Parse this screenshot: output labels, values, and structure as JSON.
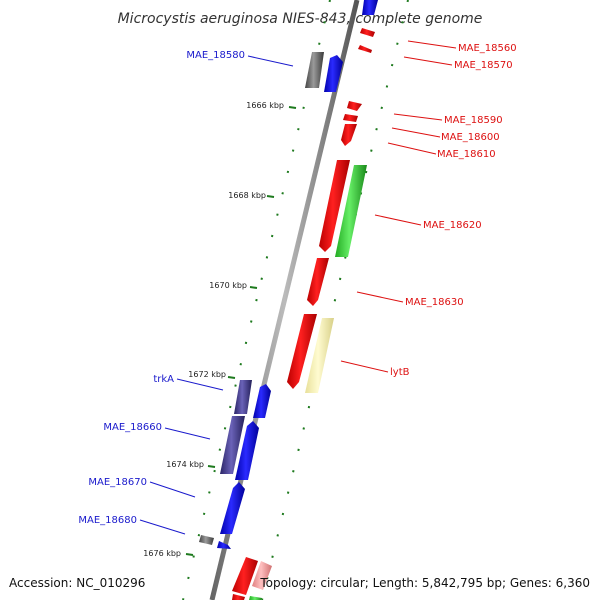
{
  "title": "Microcystis aeruginosa NIES-843, complete genome",
  "accession": "Accession: NC_010296",
  "topology": "Topology: circular; Length: 5,842,795 bp; Genes: 6,360",
  "colors": {
    "backbone": "#8a8a8a",
    "tick": "#1e7a1e",
    "blue_label": "#1a1acc",
    "red_label": "#dd1111"
  },
  "kbp_labels": [
    "1666 kbp",
    "1668 kbp",
    "1670 kbp",
    "1672 kbp",
    "1674 kbp",
    "1676 kbp"
  ],
  "genes_left": [
    "MAE_18580",
    "trkA",
    "MAE_18660",
    "MAE_18670",
    "MAE_18680"
  ],
  "genes_right": [
    "MAE_18560",
    "MAE_18570",
    "MAE_18590",
    "MAE_18600",
    "MAE_18610",
    "MAE_18620",
    "MAE_18630",
    "lytB"
  ]
}
